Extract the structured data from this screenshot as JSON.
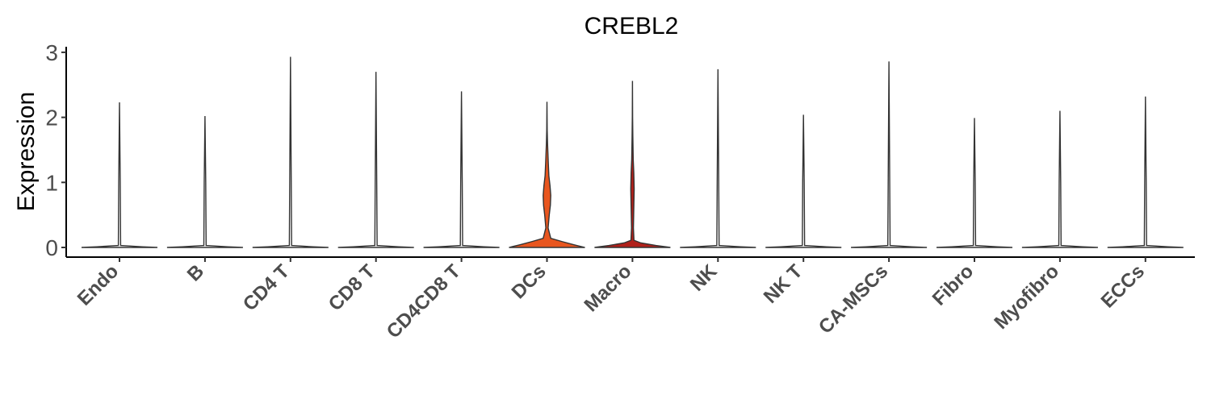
{
  "chart_data": {
    "type": "violin",
    "title": "CREBL2",
    "ylabel": "Expression",
    "xlabel": "",
    "ylim": [
      0,
      3
    ],
    "yticks": [
      "0",
      "1",
      "2",
      "3"
    ],
    "grid": false,
    "legend": "none",
    "categories": [
      "Endo",
      "B",
      "CD4 T",
      "CD8 T",
      "CD4CD8 T",
      "DCs",
      "Macro",
      "NK",
      "NK T",
      "CA-MSCs",
      "Fibro",
      "Myofibro",
      "ECCs"
    ],
    "max_values": [
      2.23,
      2.02,
      2.93,
      2.7,
      2.4,
      2.24,
      2.56,
      2.74,
      2.04,
      2.86,
      1.99,
      2.1,
      2.32
    ],
    "colors": [
      "#ffffff",
      "#ffffff",
      "#ffffff",
      "#ffffff",
      "#ffffff",
      "#e8561f",
      "#b0201a",
      "#ffffff",
      "#ffffff",
      "#ffffff",
      "#ffffff",
      "#ffffff",
      "#ffffff"
    ],
    "density_profiles": {
      "zero": [
        [
          0,
          1.0
        ],
        [
          0.01,
          0.6
        ],
        [
          0.03,
          0.03
        ],
        [
          1,
          0.02
        ]
      ],
      "DCs": [
        [
          0,
          1.0
        ],
        [
          0.04,
          0.72
        ],
        [
          0.09,
          0.4
        ],
        [
          0.14,
          0.1
        ],
        [
          0.3,
          0.03
        ],
        [
          0.5,
          0.06
        ],
        [
          0.65,
          0.09
        ],
        [
          0.8,
          0.1
        ],
        [
          0.95,
          0.08
        ],
        [
          1.1,
          0.05
        ],
        [
          1.3,
          0.035
        ],
        [
          1.6,
          0.015
        ],
        [
          1.8,
          0.006
        ],
        [
          2.24,
          0.0
        ]
      ],
      "Macro": [
        [
          0,
          1.0
        ],
        [
          0.03,
          0.62
        ],
        [
          0.07,
          0.22
        ],
        [
          0.11,
          0.04
        ],
        [
          0.3,
          0.025
        ],
        [
          0.6,
          0.035
        ],
        [
          0.9,
          0.045
        ],
        [
          1.15,
          0.035
        ],
        [
          1.35,
          0.02
        ],
        [
          1.7,
          0.01
        ],
        [
          2.0,
          0.004
        ],
        [
          2.56,
          0.0
        ]
      ]
    }
  }
}
